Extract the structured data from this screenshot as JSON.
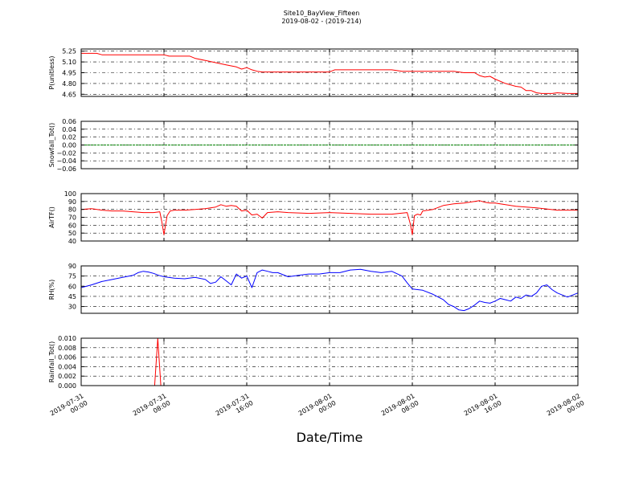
{
  "title_line1": "Site10_BayView_Fifteen",
  "title_line2": "2019-08-02 - (2019-214)",
  "xlabel": "Date/Time",
  "chart_data": [
    {
      "type": "line",
      "ylabel": "P(unitless)",
      "ylim": [
        4.62,
        5.28
      ],
      "yticks": [
        "5.25",
        "5.10",
        "4.95",
        "4.80",
        "4.65"
      ],
      "ytick_values": [
        5.25,
        5.1,
        4.95,
        4.8,
        4.65
      ],
      "color": "#ff0000",
      "x": [
        0,
        0.5,
        1.5,
        2,
        3,
        5,
        8,
        8.5,
        10.5,
        11,
        12,
        13,
        14,
        15,
        15.5,
        16,
        16.5,
        17,
        17.5,
        18,
        20,
        22,
        24,
        24.5,
        30,
        31,
        32,
        36,
        37,
        38,
        38.5,
        39,
        39.5,
        40,
        41,
        42,
        42.5,
        43,
        43.5,
        44,
        44.5,
        45,
        45.5,
        46,
        47,
        48
      ],
      "y": [
        5.22,
        5.22,
        5.22,
        5.2,
        5.2,
        5.2,
        5.2,
        5.18,
        5.18,
        5.15,
        5.12,
        5.09,
        5.06,
        5.03,
        5.0,
        5.02,
        4.99,
        4.97,
        4.96,
        4.96,
        4.96,
        4.96,
        4.96,
        4.99,
        4.99,
        4.97,
        4.97,
        4.97,
        4.95,
        4.95,
        4.91,
        4.89,
        4.9,
        4.86,
        4.8,
        4.76,
        4.75,
        4.7,
        4.7,
        4.67,
        4.66,
        4.66,
        4.66,
        4.67,
        4.66,
        4.66
      ]
    },
    {
      "type": "line",
      "ylabel": "Snowfall_Tot()",
      "ylim": [
        -0.06,
        0.06
      ],
      "yticks": [
        "0.06",
        "0.04",
        "0.02",
        "0.00",
        "−0.02",
        "−0.04",
        "−0.06"
      ],
      "ytick_values": [
        0.06,
        0.04,
        0.02,
        0.0,
        -0.02,
        -0.04,
        -0.06
      ],
      "color": "#008000",
      "x": [
        0,
        48
      ],
      "y": [
        0,
        0
      ]
    },
    {
      "type": "line",
      "ylabel": "AirTF()",
      "ylim": [
        40,
        100
      ],
      "yticks": [
        "100",
        "90",
        "80",
        "70",
        "60",
        "50",
        "40"
      ],
      "ytick_values": [
        100,
        90,
        80,
        70,
        60,
        50,
        40
      ],
      "color": "#ff0000",
      "x": [
        0,
        1,
        2,
        3,
        4,
        5,
        6,
        7,
        7.6,
        7.8,
        8.0,
        8.3,
        8.6,
        9,
        10,
        11,
        12,
        13,
        13.5,
        14,
        14.5,
        15,
        15.5,
        16,
        16.5,
        17,
        17.5,
        18,
        19,
        20,
        22,
        24,
        26,
        28,
        30,
        31.5,
        31.8,
        32.0,
        32.2,
        32.5,
        32.8,
        33,
        34,
        35,
        36,
        37,
        38,
        38.5,
        39,
        39.5,
        40,
        41,
        42,
        44,
        46,
        48
      ],
      "y": [
        80,
        81,
        79,
        78,
        78,
        77,
        76,
        76,
        77,
        64,
        48,
        72,
        78,
        79,
        79,
        80,
        81,
        83,
        86,
        84,
        85,
        84,
        78,
        79,
        73,
        74,
        69,
        76,
        77,
        76,
        75,
        76,
        75,
        74,
        74,
        76,
        62,
        48,
        72,
        74,
        73,
        78,
        80,
        85,
        87,
        88,
        90,
        91,
        89,
        88,
        88,
        86,
        84,
        82,
        79,
        79
      ]
    },
    {
      "type": "line",
      "ylabel": "RH(%)",
      "ylim": [
        20,
        90
      ],
      "yticks": [
        "90",
        "75",
        "60",
        "45",
        "30"
      ],
      "ytick_values": [
        90,
        75,
        60,
        45,
        30
      ],
      "color": "#0000ff",
      "x": [
        0,
        1,
        2,
        3,
        4,
        5,
        5.5,
        6,
        6.5,
        7,
        7.5,
        8,
        9,
        10,
        11,
        12,
        12.5,
        13,
        13.5,
        14,
        14.5,
        15,
        15.5,
        16,
        16.5,
        17,
        17.5,
        18,
        18.5,
        19,
        20,
        21,
        22,
        23,
        24,
        25,
        26,
        27,
        28,
        29,
        30,
        31,
        31.5,
        32,
        32.5,
        33,
        34,
        35,
        35.5,
        36,
        36.5,
        37,
        37.5,
        38,
        38.5,
        39,
        39.5,
        40,
        40.5,
        41,
        41.5,
        42,
        42.5,
        43,
        43.5,
        44,
        44.5,
        45,
        45.5,
        46,
        47,
        48
      ],
      "y": [
        58,
        62,
        67,
        70,
        73,
        76,
        80,
        82,
        81,
        79,
        76,
        74,
        72,
        71,
        73,
        70,
        64,
        66,
        74,
        68,
        62,
        78,
        72,
        75,
        58,
        80,
        84,
        82,
        80,
        80,
        74,
        76,
        78,
        78,
        80,
        80,
        84,
        85,
        82,
        80,
        82,
        75,
        65,
        56,
        55,
        54,
        48,
        40,
        33,
        30,
        25,
        24,
        27,
        32,
        38,
        36,
        35,
        38,
        42,
        40,
        38,
        44,
        42,
        47,
        45,
        50,
        60,
        62,
        55,
        50,
        44,
        50
      ]
    },
    {
      "type": "line",
      "ylabel": "Rainfall_Tot()",
      "ylim": [
        0,
        0.01
      ],
      "yticks": [
        "0.010",
        "0.008",
        "0.006",
        "0.004",
        "0.002",
        "0.000"
      ],
      "ytick_values": [
        0.01,
        0.008,
        0.006,
        0.004,
        0.002,
        0.0
      ],
      "color": "#ff0000",
      "x": [
        0,
        7.1,
        7.4,
        7.7,
        48
      ],
      "y": [
        0,
        0,
        0.01,
        0,
        0
      ]
    }
  ],
  "xticks": [
    {
      "line1": "2019-07-31",
      "line2": "00:00",
      "value": 0
    },
    {
      "line1": "2019-07-31",
      "line2": "08:00",
      "value": 8
    },
    {
      "line1": "2019-07-31",
      "line2": "16:00",
      "value": 16
    },
    {
      "line1": "2019-08-01",
      "line2": "00:00",
      "value": 24
    },
    {
      "line1": "2019-08-01",
      "line2": "08:00",
      "value": 32
    },
    {
      "line1": "2019-08-01",
      "line2": "16:00",
      "value": 40
    },
    {
      "line1": "2019-08-02",
      "line2": "00:00",
      "value": 48
    }
  ],
  "xlim": [
    0,
    48
  ]
}
